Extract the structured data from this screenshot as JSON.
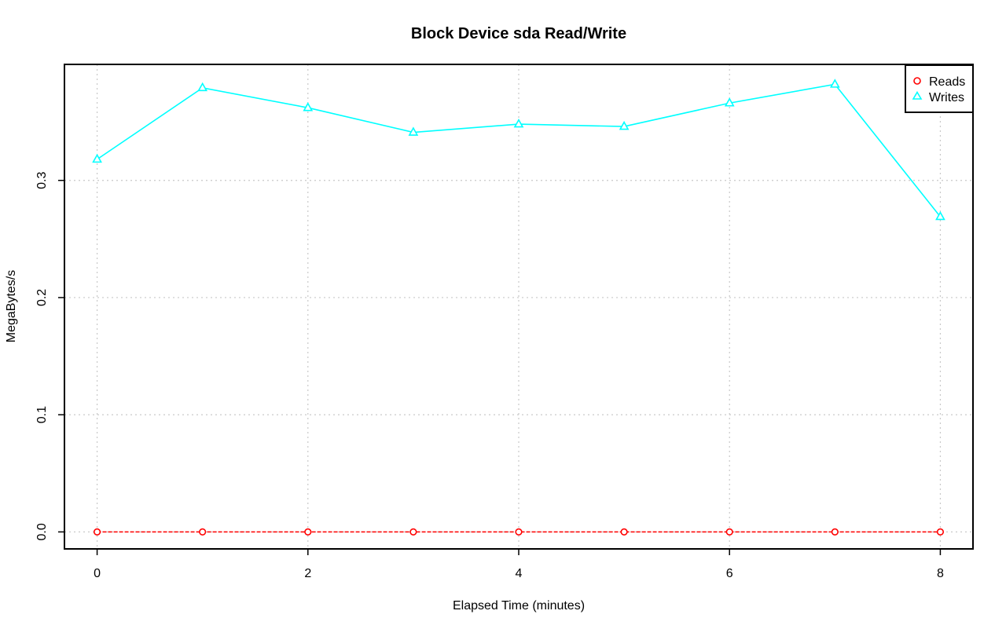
{
  "chart_data": {
    "type": "line",
    "title": "Block Device sda Read/Write",
    "xlabel": "Elapsed Time (minutes)",
    "ylabel": "MegaBytes/s",
    "x": [
      0,
      1,
      2,
      3,
      4,
      5,
      6,
      7,
      8
    ],
    "xlim": [
      -0.31,
      8.31
    ],
    "ylim": [
      -0.0145,
      0.399
    ],
    "x_ticks": [
      0,
      2,
      4,
      6,
      8
    ],
    "x_tick_labels": [
      "0",
      "2",
      "4",
      "6",
      "8"
    ],
    "y_ticks": [
      0.0,
      0.1,
      0.2,
      0.3
    ],
    "y_tick_labels": [
      "0.0",
      "0.1",
      "0.2",
      "0.3"
    ],
    "grid": true,
    "legend_position": "top-right",
    "series": [
      {
        "name": "Reads",
        "color": "#ff0000",
        "marker": "circle",
        "line_style": "dashed",
        "values": [
          0,
          0,
          0,
          0,
          0,
          0,
          0,
          0,
          0
        ]
      },
      {
        "name": "Writes",
        "color": "#00ffff",
        "marker": "triangle",
        "line_style": "solid",
        "values": [
          0.318,
          0.379,
          0.362,
          0.341,
          0.348,
          0.346,
          0.366,
          0.382,
          0.269
        ]
      }
    ]
  }
}
